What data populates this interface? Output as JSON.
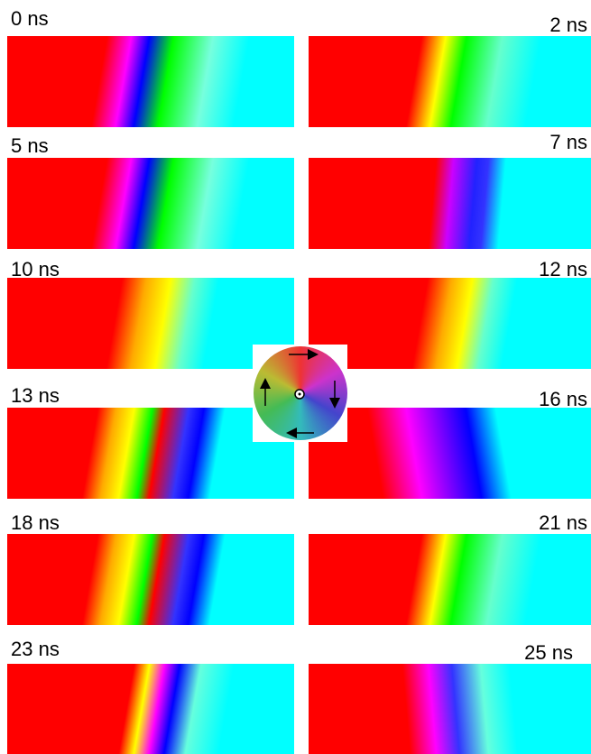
{
  "panels": [
    {
      "label": "0 ns"
    },
    {
      "label": "2 ns"
    },
    {
      "label": "5 ns"
    },
    {
      "label": "7 ns"
    },
    {
      "label": "10 ns"
    },
    {
      "label": "12 ns"
    },
    {
      "label": "13 ns"
    },
    {
      "label": "16 ns"
    },
    {
      "label": "18 ns"
    },
    {
      "label": "21 ns"
    },
    {
      "label": "23 ns"
    },
    {
      "label": "25 ns"
    }
  ]
}
